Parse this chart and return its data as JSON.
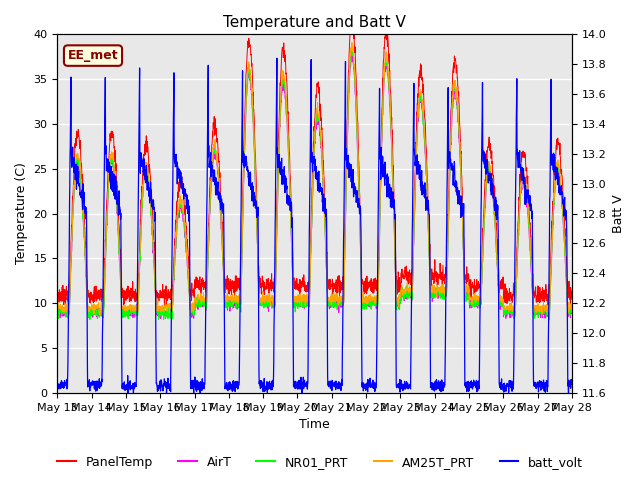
{
  "title": "Temperature and Batt V",
  "xlabel": "Time",
  "ylabel_left": "Temperature (C)",
  "ylabel_right": "Batt V",
  "annotation": "EE_met",
  "ylim_left": [
    0,
    40
  ],
  "ylim_right": [
    11.6,
    14.0
  ],
  "n_days": 15,
  "xtick_labels": [
    "May 13",
    "May 14",
    "May 15",
    "May 16",
    "May 17",
    "May 18",
    "May 19",
    "May 20",
    "May 21",
    "May 22",
    "May 23",
    "May 24",
    "May 25",
    "May 26",
    "May 27",
    "May 28"
  ],
  "legend_entries": [
    "PanelTemp",
    "AirT",
    "NR01_PRT",
    "AM25T_PRT",
    "batt_volt"
  ],
  "line_colors": [
    "red",
    "magenta",
    "lime",
    "orange",
    "blue"
  ],
  "background_color": "#e8e8e8",
  "title_fontsize": 11,
  "axis_fontsize": 9,
  "tick_fontsize": 8,
  "legend_fontsize": 9,
  "grid_color": "white",
  "grid_linewidth": 1.0,
  "yticks_left": [
    0,
    5,
    10,
    15,
    20,
    25,
    30,
    35,
    40
  ],
  "yticks_right": [
    11.6,
    11.8,
    12.0,
    12.2,
    12.4,
    12.6,
    12.8,
    13.0,
    13.2,
    13.4,
    13.6,
    13.8,
    14.0
  ]
}
